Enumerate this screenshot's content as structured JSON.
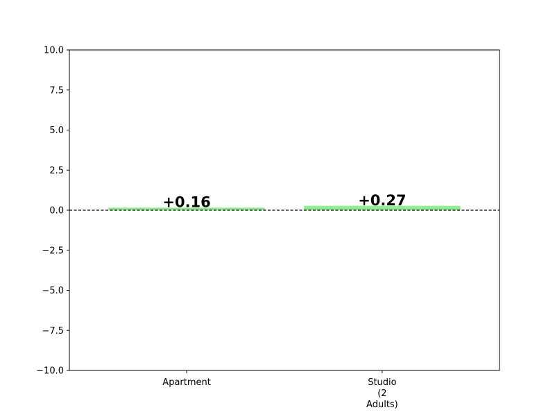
{
  "chart_data": {
    "type": "bar",
    "title": "",
    "xlabel": "",
    "ylabel": "",
    "categories": [
      "Apartment",
      "Studio\n(2\nAdults)"
    ],
    "values": [
      0.16,
      0.27
    ],
    "data_labels": [
      "+0.16",
      "+0.27"
    ],
    "ylim": [
      -10,
      10
    ],
    "yticks": [
      10.0,
      7.5,
      5.0,
      2.5,
      0.0,
      -2.5,
      -5.0,
      -7.5,
      -10.0
    ],
    "ytick_labels": [
      "10.0",
      "7.5",
      "5.0",
      "2.5",
      "0.0",
      "−2.5",
      "−5.0",
      "−7.5",
      "−10.0"
    ],
    "bar_color": "#90ee90",
    "zero_line": "dashed",
    "grid": false,
    "legend": "none"
  }
}
